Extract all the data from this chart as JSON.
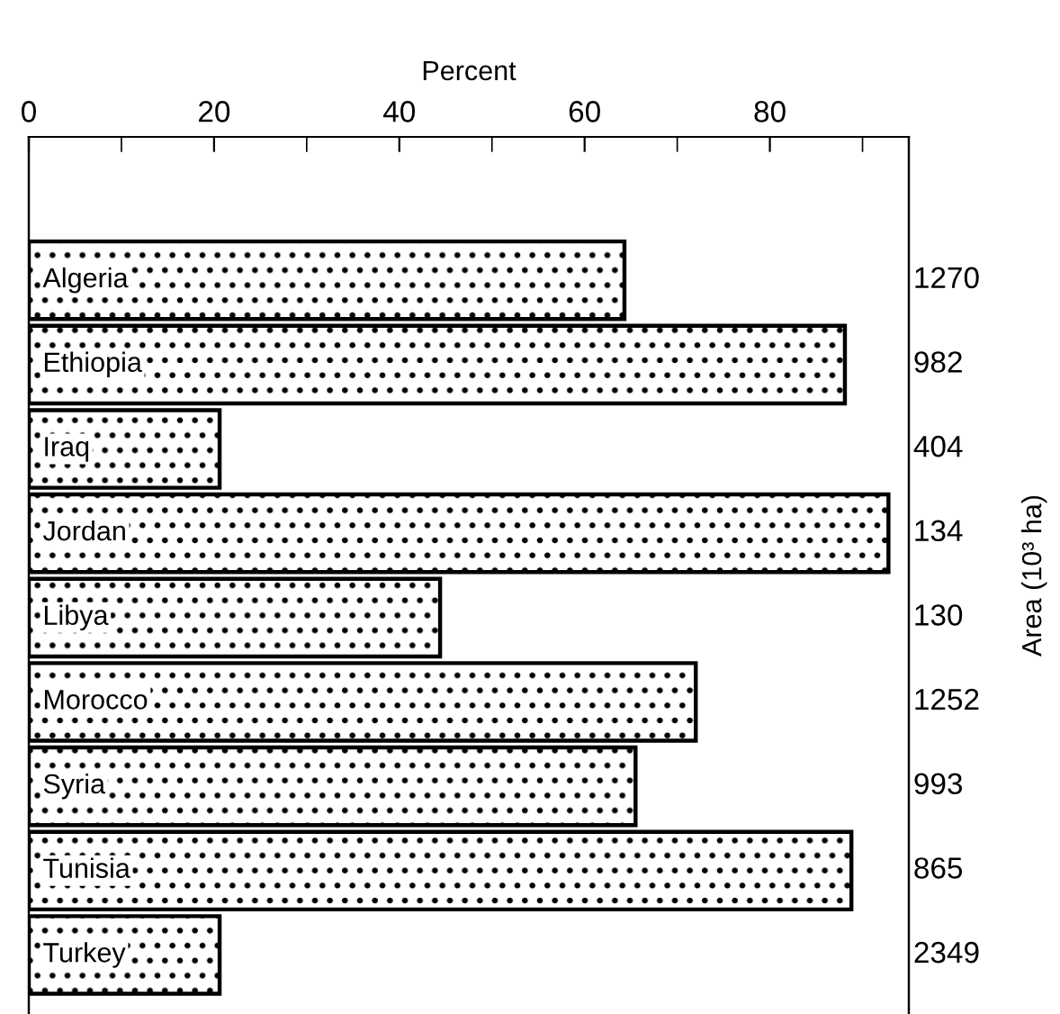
{
  "chart_data": {
    "type": "bar",
    "orientation": "horizontal",
    "xlabel": "Percent",
    "y2label": "Area (10³ ha)",
    "categories": [
      "Algeria",
      "Ethiopia",
      "Iraq",
      "Jordan",
      "Libya",
      "Morocco",
      "Syria",
      "Tunisia",
      "Turkey"
    ],
    "values": [
      64.3,
      88.1,
      20.6,
      92.8,
      44.4,
      72,
      65.5,
      88.8,
      20.6
    ],
    "color": "#000000",
    "xlim": [
      0,
      95
    ],
    "xticks": [
      0,
      20,
      40,
      60,
      80
    ],
    "annotations": [
      "1270",
      "982",
      "404",
      "134",
      "130",
      "1252",
      "993",
      "865",
      "2349"
    ],
    "grid": false,
    "legend": false
  }
}
